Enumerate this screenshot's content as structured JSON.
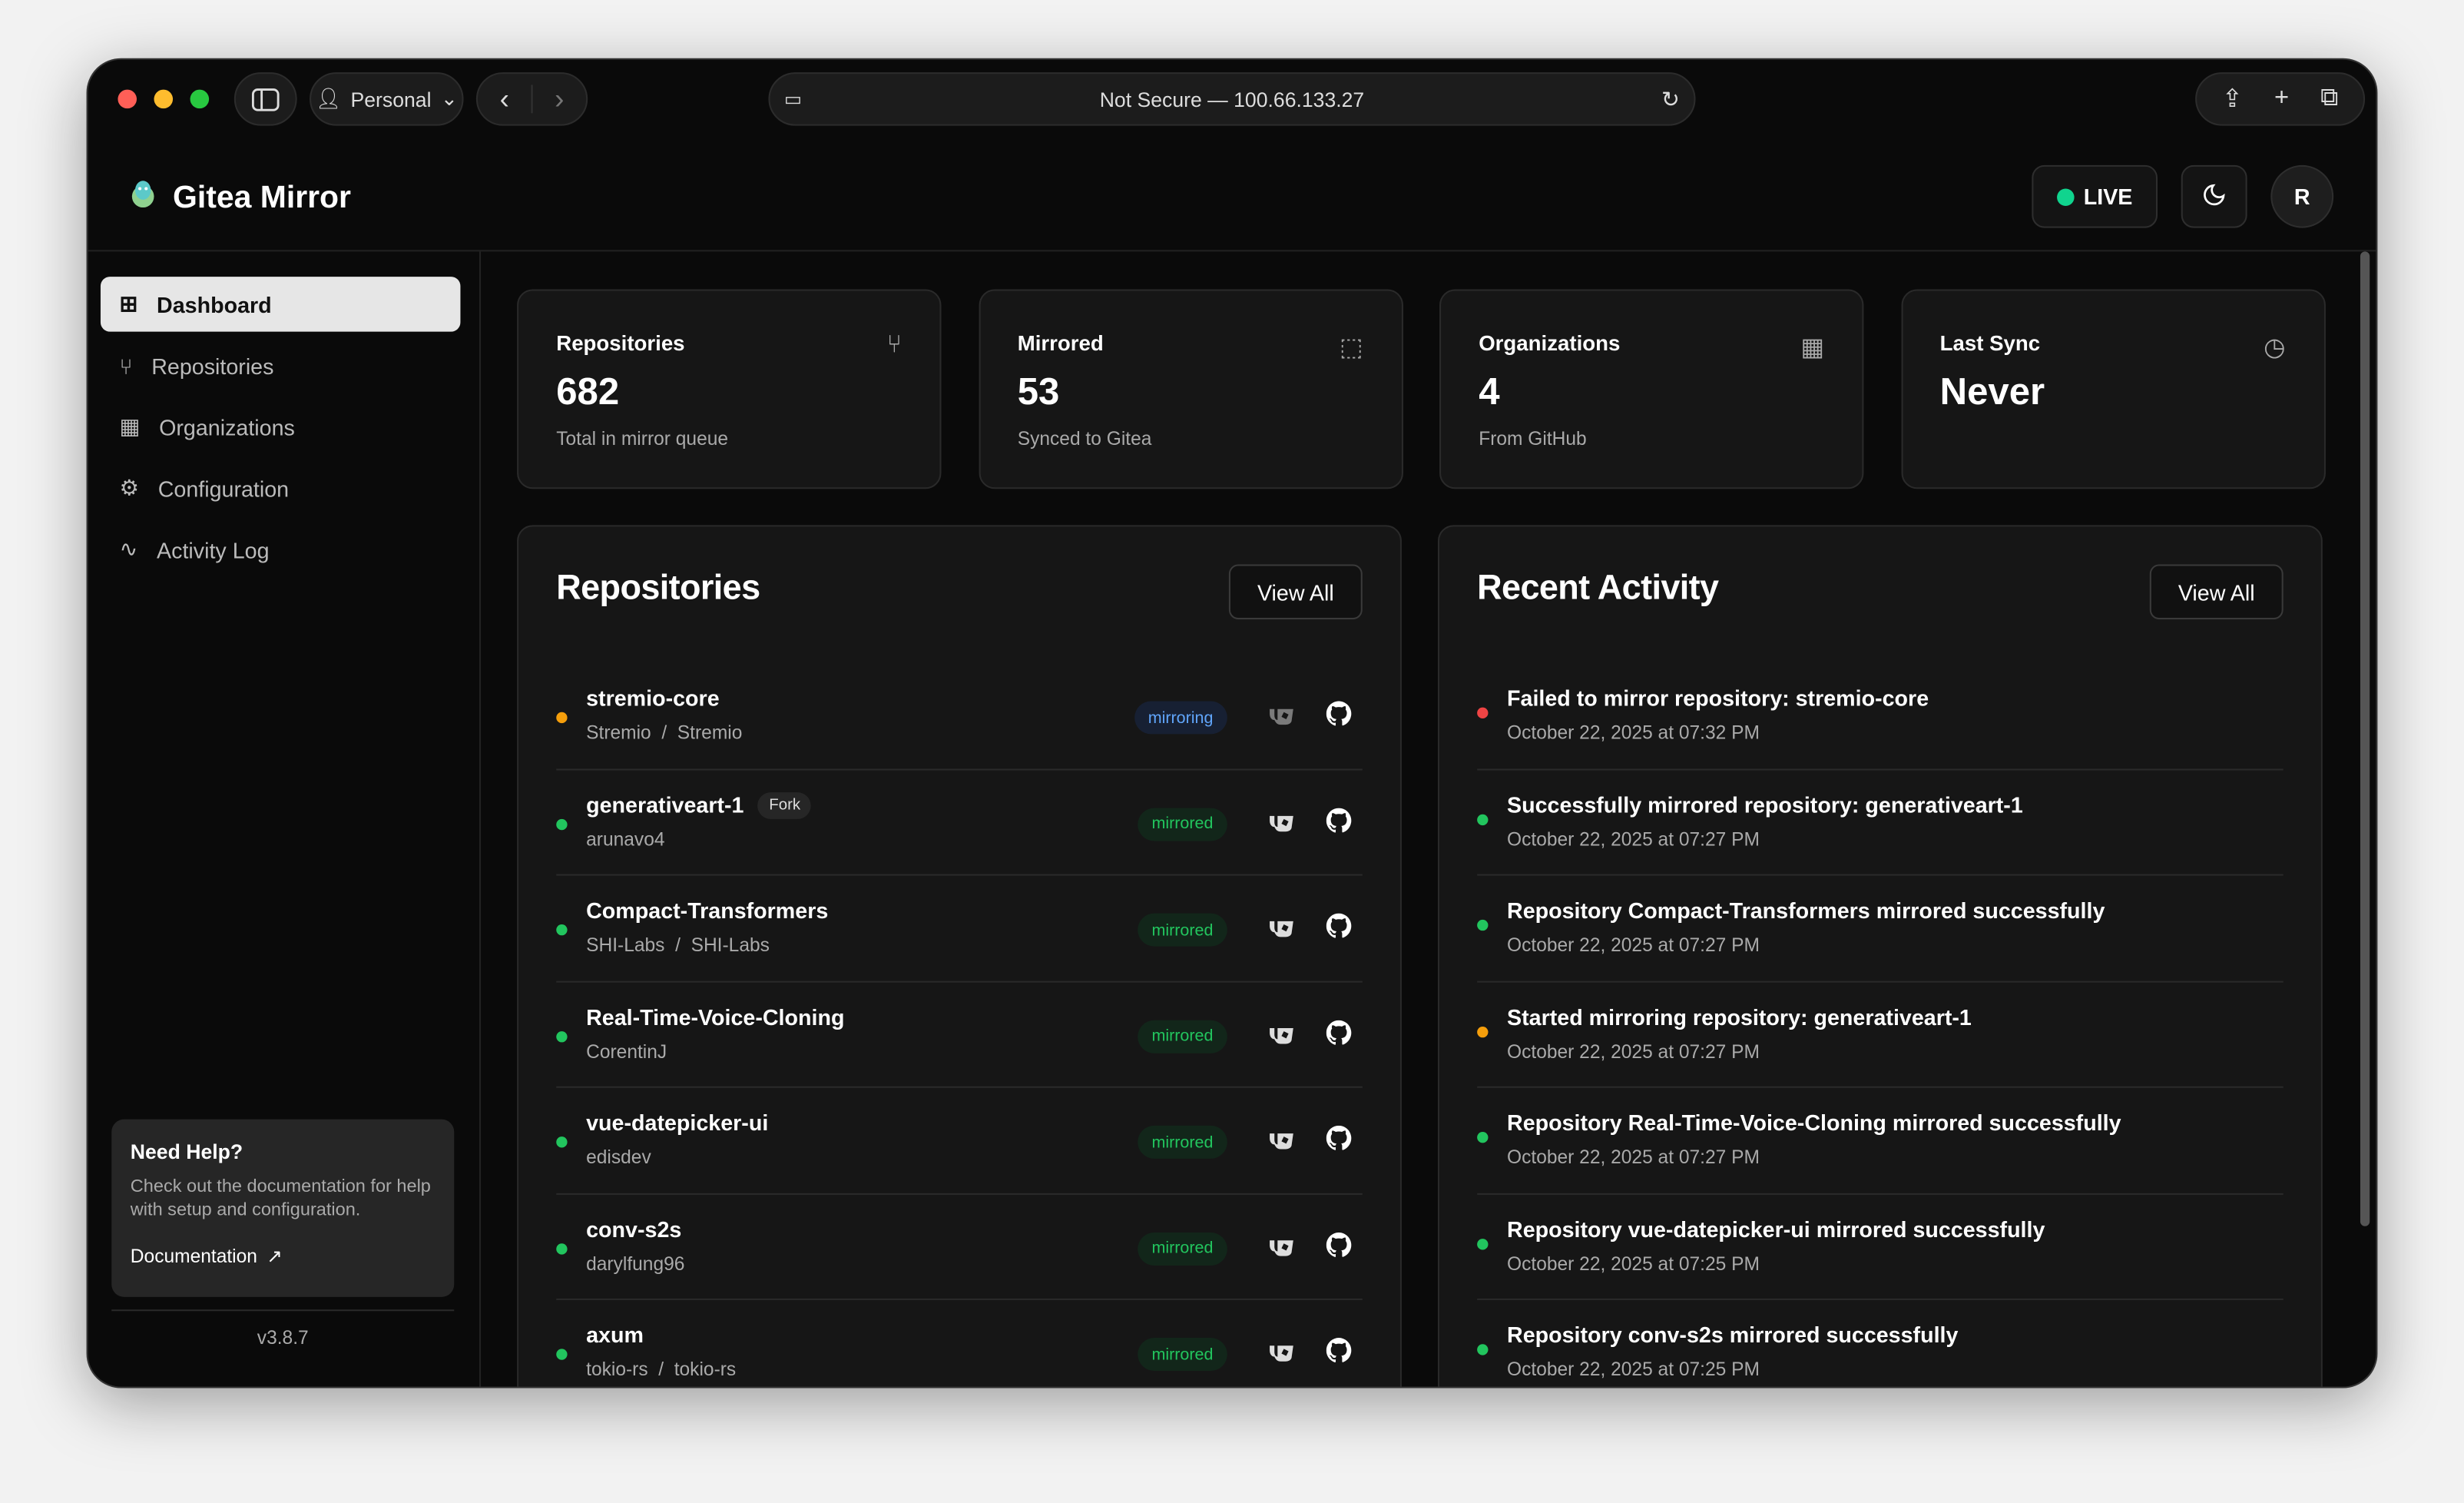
{
  "browser": {
    "profile": "Personal",
    "address": "Not Secure — 100.66.133.27"
  },
  "app": {
    "title": "Gitea Mirror",
    "live_label": "LIVE",
    "avatar_initial": "R",
    "live_color": "#10d48e"
  },
  "sidebar": {
    "items": [
      {
        "label": "Dashboard",
        "icon": "dashboard-icon",
        "active": true
      },
      {
        "label": "Repositories",
        "icon": "git-fork-icon"
      },
      {
        "label": "Organizations",
        "icon": "building-icon"
      },
      {
        "label": "Configuration",
        "icon": "gear-icon"
      },
      {
        "label": "Activity Log",
        "icon": "activity-icon"
      }
    ],
    "help": {
      "title": "Need Help?",
      "text": "Check out the documentation for help with setup and configuration.",
      "link": "Documentation"
    },
    "version": "v3.8.7"
  },
  "stats": [
    {
      "title": "Repositories",
      "value": "682",
      "sub": "Total in mirror queue",
      "icon": "git-fork-icon"
    },
    {
      "title": "Mirrored",
      "value": "53",
      "sub": "Synced to Gitea",
      "icon": "mirror-icon"
    },
    {
      "title": "Organizations",
      "value": "4",
      "sub": "From GitHub",
      "icon": "building-icon"
    },
    {
      "title": "Last Sync",
      "value": "Never",
      "sub": "",
      "icon": "clock-icon"
    }
  ],
  "repositories": {
    "title": "Repositories",
    "view_all": "View All",
    "items": [
      {
        "name": "stremio-core",
        "sub": "Stremio  /  Stremio",
        "status": "mirroring",
        "dot": "#f59e0b"
      },
      {
        "name": "generativeart-1",
        "fork": "Fork",
        "sub": "arunavo4",
        "status": "mirrored",
        "dot": "#22c55e"
      },
      {
        "name": "Compact-Transformers",
        "sub": "SHI-Labs  /  SHI-Labs",
        "status": "mirrored",
        "dot": "#22c55e"
      },
      {
        "name": "Real-Time-Voice-Cloning",
        "sub": "CorentinJ",
        "status": "mirrored",
        "dot": "#22c55e"
      },
      {
        "name": "vue-datepicker-ui",
        "sub": "edisdev",
        "status": "mirrored",
        "dot": "#22c55e"
      },
      {
        "name": "conv-s2s",
        "sub": "darylfung96",
        "status": "mirrored",
        "dot": "#22c55e"
      },
      {
        "name": "axum",
        "sub": "tokio-rs  /  tokio-rs",
        "status": "mirrored",
        "dot": "#22c55e"
      }
    ]
  },
  "activity": {
    "title": "Recent Activity",
    "view_all": "View All",
    "items": [
      {
        "text": "Failed to mirror repository: stremio-core",
        "time": "October 22, 2025 at 07:32 PM",
        "dot": "#ef4444"
      },
      {
        "text": "Successfully mirrored repository: generativeart-1",
        "time": "October 22, 2025 at 07:27 PM",
        "dot": "#22c55e"
      },
      {
        "text": "Repository Compact-Transformers mirrored successfully",
        "time": "October 22, 2025 at 07:27 PM",
        "dot": "#22c55e"
      },
      {
        "text": "Started mirroring repository: generativeart-1",
        "time": "October 22, 2025 at 07:27 PM",
        "dot": "#f59e0b"
      },
      {
        "text": "Repository Real-Time-Voice-Cloning mirrored successfully",
        "time": "October 22, 2025 at 07:27 PM",
        "dot": "#22c55e"
      },
      {
        "text": "Repository vue-datepicker-ui mirrored successfully",
        "time": "October 22, 2025 at 07:25 PM",
        "dot": "#22c55e"
      },
      {
        "text": "Repository conv-s2s mirrored successfully",
        "time": "October 22, 2025 at 07:25 PM",
        "dot": "#22c55e"
      }
    ]
  }
}
